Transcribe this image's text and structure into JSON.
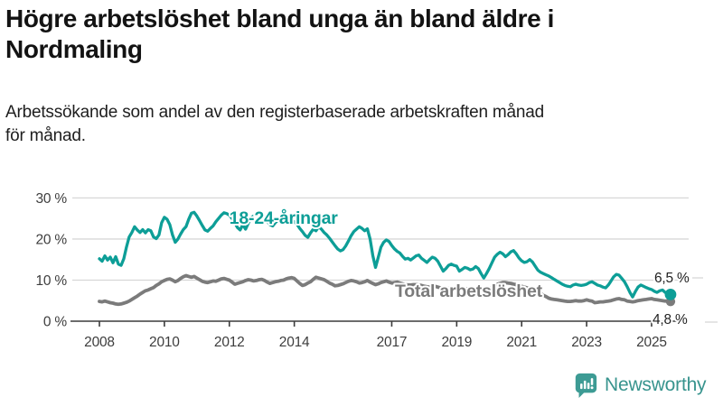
{
  "header": {
    "title": "Högre arbetslöshet bland unga än bland äldre i\nNordmaling",
    "subtitle": "Arbetssökande som andel av den registerbaserade arbetskraften månad\nför månad."
  },
  "footer": {
    "brand": "Newsworthy",
    "logo_icon": "bar-chart-speech-bubble-icon"
  },
  "colors": {
    "youth_line": "#0d9e97",
    "total_line": "#7b7b7b",
    "grid": "#d7d7d7",
    "axis": "#3c3c3c",
    "tick_text": "#3d3d3d",
    "end_label_text": "#222222",
    "brand": "#38948e",
    "background": "#ffffff"
  },
  "chart_data": {
    "type": "line",
    "title": "Högre arbetslöshet bland unga än bland äldre i Nordmaling",
    "subtitle": "Arbetssökande som andel av den registerbaserade arbetskraften månad för månad.",
    "unit": "%",
    "grid": "horizontal",
    "legend_position": "inline-labels",
    "x_axis": {
      "tick_labels": [
        "2008",
        "2010",
        "2012",
        "2014",
        "2017",
        "2019",
        "2021",
        "2023",
        "2025"
      ],
      "tick_years": [
        2008,
        2010,
        2012,
        2014,
        2017,
        2019,
        2021,
        2023,
        2025
      ],
      "range_years": [
        2008,
        2025.67
      ]
    },
    "y_axis": {
      "tick_labels": [
        "0 %",
        "10 %",
        "20 %",
        "30 %"
      ],
      "tick_values": [
        0,
        10,
        20,
        30
      ],
      "range": [
        0,
        32
      ]
    },
    "series": [
      {
        "name": "Total arbetslöshet",
        "color": "#7b7b7b",
        "end_value": 4.8,
        "end_label": "4,8 %",
        "label_anchor": {
          "year": 2017.1,
          "value": 5.9
        },
        "cadence": "monthly",
        "start_year": 2008,
        "values": [
          4.8,
          4.7,
          4.9,
          4.7,
          4.5,
          4.4,
          4.2,
          4.1,
          4.2,
          4.4,
          4.6,
          4.9,
          5.3,
          5.7,
          6.1,
          6.6,
          7.0,
          7.4,
          7.6,
          7.9,
          8.2,
          8.7,
          9.1,
          9.6,
          9.9,
          10.2,
          10.3,
          10.0,
          9.6,
          9.9,
          10.4,
          10.8,
          11.1,
          10.9,
          10.7,
          10.9,
          10.5,
          10.1,
          9.7,
          9.5,
          9.4,
          9.6,
          9.8,
          9.7,
          10.0,
          10.3,
          10.4,
          10.2,
          10.0,
          9.5,
          9.0,
          9.2,
          9.4,
          9.6,
          9.9,
          10.1,
          10.0,
          9.8,
          9.9,
          10.1,
          10.2,
          9.9,
          9.5,
          9.2,
          9.4,
          9.6,
          9.7,
          9.9,
          10.0,
          10.3,
          10.5,
          10.6,
          10.4,
          9.8,
          9.2,
          8.7,
          8.9,
          9.3,
          9.6,
          10.2,
          10.7,
          10.5,
          10.3,
          10.1,
          9.7,
          9.3,
          9.0,
          8.6,
          8.7,
          8.9,
          9.1,
          9.4,
          9.7,
          9.9,
          9.8,
          9.6,
          9.3,
          9.4,
          9.6,
          9.9,
          9.5,
          9.2,
          8.9,
          9.1,
          9.4,
          9.6,
          9.8,
          9.5,
          9.3,
          9.4,
          9.5,
          9.3,
          9.1,
          8.9,
          8.8,
          8.8,
          8.9,
          8.9,
          8.8,
          8.7,
          8.5,
          8.4,
          8.3,
          8.4,
          8.5,
          8.3,
          8.1,
          8.0,
          7.9,
          8.0,
          8.1,
          8.0,
          8.0,
          7.9,
          7.8,
          7.8,
          7.9,
          7.7,
          7.6,
          7.6,
          7.7,
          7.6,
          7.5,
          7.6,
          7.8,
          8.2,
          8.6,
          9.0,
          9.2,
          9.4,
          9.4,
          9.3,
          9.2,
          9.0,
          8.9,
          8.7,
          8.5,
          8.3,
          8.1,
          7.9,
          7.6,
          7.3,
          7.0,
          6.7,
          6.3,
          6.0,
          5.6,
          5.4,
          5.3,
          5.2,
          5.1,
          5.0,
          4.9,
          4.8,
          4.8,
          4.9,
          5.0,
          4.9,
          4.9,
          5.0,
          5.2,
          5.0,
          4.9,
          4.5,
          4.6,
          4.7,
          4.7,
          4.8,
          4.9,
          5.0,
          5.2,
          5.4,
          5.5,
          5.3,
          5.2,
          4.9,
          4.8,
          4.7,
          4.8,
          5.0,
          5.1,
          5.2,
          5.3,
          5.4,
          5.5,
          5.3,
          5.2,
          5.1,
          5.0,
          4.9,
          4.9,
          4.8
        ]
      },
      {
        "name": "18-24-åringar",
        "color": "#0d9e97",
        "end_value": 6.5,
        "end_label": "6,5 %",
        "label_anchor": {
          "year": 2012.0,
          "value": 23.7
        },
        "cadence": "monthly",
        "start_year": 2008,
        "values": [
          15.2,
          14.6,
          15.9,
          14.9,
          15.6,
          14.2,
          15.7,
          13.9,
          13.6,
          15.2,
          18.0,
          20.5,
          21.6,
          23.0,
          22.2,
          21.6,
          22.3,
          21.5,
          22.3,
          22.0,
          20.5,
          20.1,
          21.0,
          24.0,
          25.3,
          24.8,
          23.5,
          21.0,
          19.2,
          20.0,
          21.2,
          22.3,
          23.0,
          24.8,
          26.3,
          26.5,
          25.6,
          24.5,
          23.3,
          22.2,
          21.9,
          22.6,
          23.2,
          24.2,
          25.0,
          25.8,
          26.4,
          26.2,
          25.8,
          25.0,
          24.0,
          22.8,
          22.2,
          23.5,
          22.4,
          23.8,
          25.2,
          25.6,
          26.0,
          25.6,
          25.9,
          25.2,
          24.2,
          23.5,
          23.2,
          24.0,
          24.6,
          25.0,
          25.4,
          25.5,
          25.2,
          24.6,
          24.2,
          23.6,
          22.6,
          21.8,
          20.9,
          20.4,
          21.5,
          22.4,
          22.0,
          23.0,
          22.4,
          21.6,
          21.0,
          20.2,
          19.3,
          18.4,
          17.6,
          17.1,
          17.4,
          18.3,
          19.5,
          20.8,
          21.8,
          22.4,
          23.0,
          22.6,
          22.0,
          22.5,
          20.0,
          16.0,
          13.1,
          15.5,
          18.0,
          19.2,
          19.8,
          19.4,
          18.4,
          17.6,
          17.0,
          16.6,
          15.8,
          15.1,
          15.3,
          14.9,
          15.4,
          15.9,
          16.1,
          15.3,
          14.8,
          14.3,
          15.0,
          15.6,
          15.3,
          14.6,
          13.4,
          12.2,
          12.8,
          13.6,
          13.9,
          13.6,
          13.4,
          12.2,
          12.6,
          13.1,
          12.9,
          12.5,
          12.7,
          13.3,
          12.8,
          11.6,
          10.5,
          11.6,
          12.8,
          14.2,
          15.6,
          16.3,
          16.8,
          16.4,
          15.7,
          16.2,
          16.9,
          17.2,
          16.4,
          15.4,
          14.7,
          14.3,
          14.5,
          15.0,
          14.4,
          13.4,
          12.4,
          11.9,
          11.6,
          11.3,
          11.0,
          10.6,
          10.2,
          9.8,
          9.4,
          9.0,
          8.7,
          8.5,
          8.4,
          8.8,
          9.0,
          8.8,
          8.7,
          8.8,
          9.0,
          9.4,
          9.6,
          9.2,
          8.8,
          8.6,
          8.3,
          8.1,
          8.8,
          9.8,
          10.8,
          11.4,
          11.2,
          10.4,
          9.6,
          8.4,
          7.0,
          5.9,
          7.2,
          8.3,
          8.8,
          8.5,
          8.2,
          7.9,
          7.7,
          7.3,
          7.0,
          7.4,
          7.6,
          7.0,
          6.7,
          6.5
        ]
      }
    ]
  }
}
